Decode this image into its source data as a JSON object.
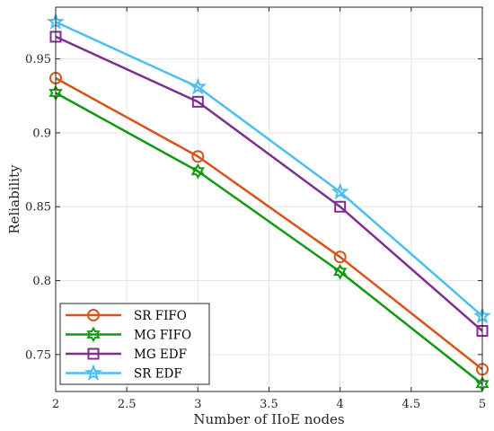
{
  "chart_data": {
    "type": "line",
    "xlabel": "Number of IIoE nodes",
    "ylabel": "Reliability",
    "xlim": [
      2,
      5
    ],
    "ylim": [
      0.725,
      0.985
    ],
    "xticks": [
      2,
      2.5,
      3,
      3.5,
      4,
      4.5,
      5
    ],
    "yticks": [
      0.75,
      0.8,
      0.85,
      0.9,
      0.95
    ],
    "x": [
      2,
      3,
      4,
      5
    ],
    "grid": true,
    "legend_position": "bottom-left",
    "series": [
      {
        "name": "SR FIFO",
        "color": "#D95319",
        "marker": "circle",
        "values": [
          0.937,
          0.884,
          0.816,
          0.74
        ]
      },
      {
        "name": "MG FIFO",
        "color": "#119911",
        "marker": "hexagram",
        "values": [
          0.927,
          0.874,
          0.806,
          0.73
        ]
      },
      {
        "name": "MG EDF",
        "color": "#7E2F8E",
        "marker": "square",
        "values": [
          0.965,
          0.921,
          0.85,
          0.766
        ]
      },
      {
        "name": "SR EDF",
        "color": "#4DBEEE",
        "marker": "pentagram",
        "values": [
          0.975,
          0.931,
          0.86,
          0.776
        ]
      }
    ]
  }
}
